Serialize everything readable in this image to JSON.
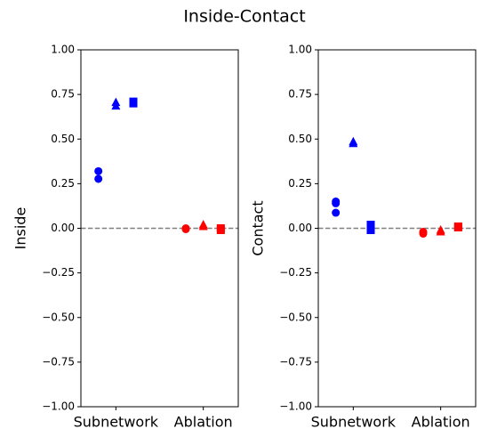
{
  "title": "Inside-Contact",
  "chart_data": [
    {
      "type": "scatter",
      "ylabel": "Inside",
      "xlim": [
        -0.4,
        1.4
      ],
      "ylim": [
        -1,
        1
      ],
      "xticks": [
        {
          "value": 0,
          "label": "Subnetwork"
        },
        {
          "value": 1,
          "label": "Ablation"
        }
      ],
      "yticks": [
        {
          "value": 1,
          "label": "1.00"
        },
        {
          "value": 0.75,
          "label": "0.75"
        },
        {
          "value": 0.5,
          "label": "0.50"
        },
        {
          "value": 0.25,
          "label": "0.25"
        },
        {
          "value": 0,
          "label": "0.00"
        },
        {
          "value": -0.25,
          "label": "−0.25"
        },
        {
          "value": -0.5,
          "label": "−0.50"
        },
        {
          "value": -0.75,
          "label": "−0.75"
        },
        {
          "value": -1,
          "label": "−1.00"
        }
      ],
      "hline": 0,
      "hline_color": "#808080",
      "series": [
        {
          "marker": "circle",
          "color": "#0000ff",
          "x": [
            -0.2,
            -0.2
          ],
          "values": [
            0.32,
            0.277
          ]
        },
        {
          "marker": "triangle",
          "color": "#0000ff",
          "x": [
            0,
            0
          ],
          "values": [
            0.705,
            0.685
          ]
        },
        {
          "marker": "square",
          "color": "#0000ff",
          "x": [
            0.2,
            0.2
          ],
          "values": [
            0.71,
            0.7
          ]
        },
        {
          "marker": "circle",
          "color": "#ff0000",
          "x": [
            0.8,
            0.8
          ],
          "values": [
            0.0,
            -0.005
          ]
        },
        {
          "marker": "triangle",
          "color": "#ff0000",
          "x": [
            1,
            1
          ],
          "values": [
            0.02,
            0.01
          ]
        },
        {
          "marker": "square",
          "color": "#ff0000",
          "x": [
            1.2,
            1.2
          ],
          "values": [
            0.0,
            -0.01
          ]
        }
      ]
    },
    {
      "type": "scatter",
      "ylabel": "Contact",
      "xlim": [
        -0.4,
        1.4
      ],
      "ylim": [
        -1,
        1
      ],
      "xticks": [
        {
          "value": 0,
          "label": "Subnetwork"
        },
        {
          "value": 1,
          "label": "Ablation"
        }
      ],
      "yticks": [
        {
          "value": 1,
          "label": "1.00"
        },
        {
          "value": 0.75,
          "label": "0.75"
        },
        {
          "value": 0.5,
          "label": "0.50"
        },
        {
          "value": 0.25,
          "label": "0.25"
        },
        {
          "value": 0,
          "label": "0.00"
        },
        {
          "value": -0.25,
          "label": "−0.25"
        },
        {
          "value": -0.5,
          "label": "−0.50"
        },
        {
          "value": -0.75,
          "label": "−0.75"
        },
        {
          "value": -1,
          "label": "−1.00"
        }
      ],
      "hline": 0,
      "hline_color": "#808080",
      "series": [
        {
          "marker": "circle",
          "color": "#0000ff",
          "x": [
            -0.2,
            -0.2,
            -0.2
          ],
          "values": [
            0.15,
            0.14,
            0.087
          ]
        },
        {
          "marker": "triangle",
          "color": "#0000ff",
          "x": [
            0,
            0
          ],
          "values": [
            0.485,
            0.475
          ]
        },
        {
          "marker": "square",
          "color": "#0000ff",
          "x": [
            0.2,
            0.2
          ],
          "values": [
            0.02,
            -0.01
          ]
        },
        {
          "marker": "circle",
          "color": "#ff0000",
          "x": [
            0.8,
            0.8
          ],
          "values": [
            -0.02,
            -0.03
          ]
        },
        {
          "marker": "triangle",
          "color": "#ff0000",
          "x": [
            1,
            1
          ],
          "values": [
            -0.01,
            -0.02
          ]
        },
        {
          "marker": "square",
          "color": "#ff0000",
          "x": [
            1.2,
            1.2
          ],
          "values": [
            0.01,
            0.005
          ]
        }
      ]
    }
  ]
}
